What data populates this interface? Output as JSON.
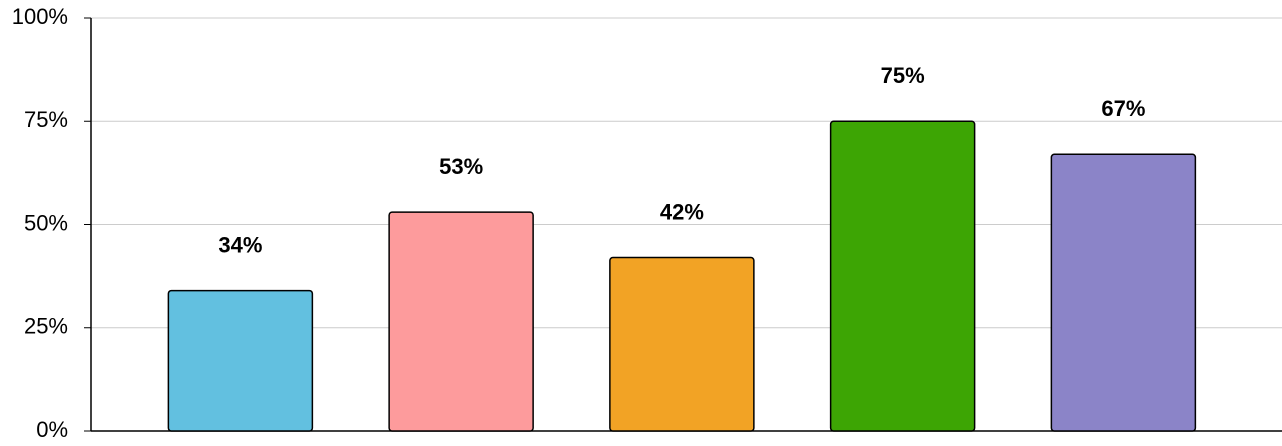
{
  "chart_data": {
    "type": "bar",
    "categories": [
      null,
      null,
      null,
      null,
      null
    ],
    "values": [
      34,
      53,
      42,
      75,
      67
    ],
    "value_labels": [
      "34%",
      "53%",
      "42%",
      "75%",
      "67%"
    ],
    "colors": [
      "#62c0e0",
      "#fd9b9c",
      "#f2a325",
      "#3da504",
      "#8b84c8"
    ],
    "ylim": [
      0,
      100
    ],
    "yticks": [
      {
        "value": 0,
        "label": "0%"
      },
      {
        "value": 25,
        "label": "25%"
      },
      {
        "value": 50,
        "label": "50%"
      },
      {
        "value": 75,
        "label": "75%"
      },
      {
        "value": 100,
        "label": "100%"
      }
    ],
    "grid": true
  }
}
